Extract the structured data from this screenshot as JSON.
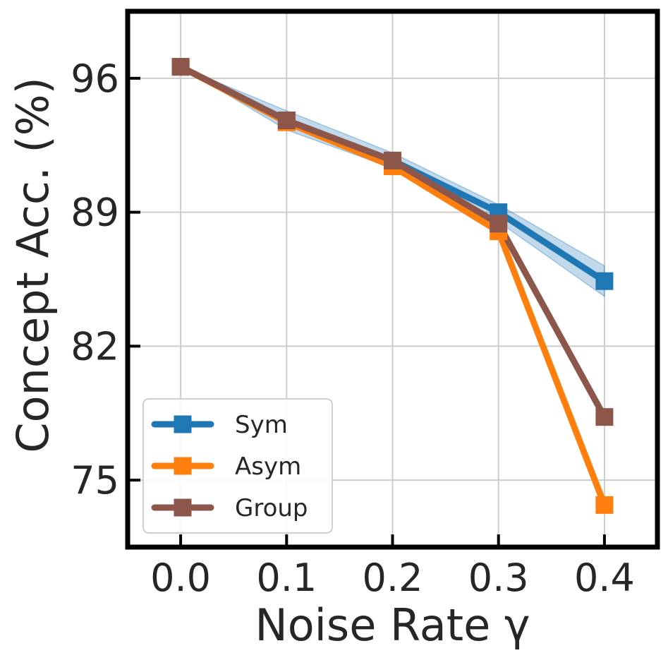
{
  "chart_data": {
    "type": "line",
    "x": [
      0.0,
      0.1,
      0.2,
      0.3,
      0.4
    ],
    "x_tick_labels": [
      "0.0",
      "0.1",
      "0.2",
      "0.3",
      "0.4"
    ],
    "y_ticks": [
      75,
      82,
      89,
      96
    ],
    "y_tick_labels": [
      "75",
      "82",
      "89",
      "96"
    ],
    "xlabel": "Noise Rate γ",
    "ylabel": "Concept Acc. (%)",
    "xlim": [
      -0.05,
      0.45
    ],
    "ylim": [
      71.5,
      99.5
    ],
    "grid": true,
    "legend_position": "lower-left",
    "series": [
      {
        "name": "Sym",
        "color": "#1f77b4",
        "values": [
          96.6,
          93.8,
          91.7,
          89.0,
          85.4
        ],
        "band_lower": [
          96.6,
          93.3,
          91.3,
          88.5,
          84.6
        ],
        "band_upper": [
          96.6,
          94.3,
          92.1,
          89.4,
          86.2
        ]
      },
      {
        "name": "Asym",
        "color": "#ff7f0e",
        "values": [
          96.6,
          93.7,
          91.4,
          88.0,
          73.7
        ]
      },
      {
        "name": "Group",
        "color": "#8c564b",
        "values": [
          96.6,
          93.8,
          91.7,
          88.4,
          78.3
        ]
      }
    ]
  }
}
